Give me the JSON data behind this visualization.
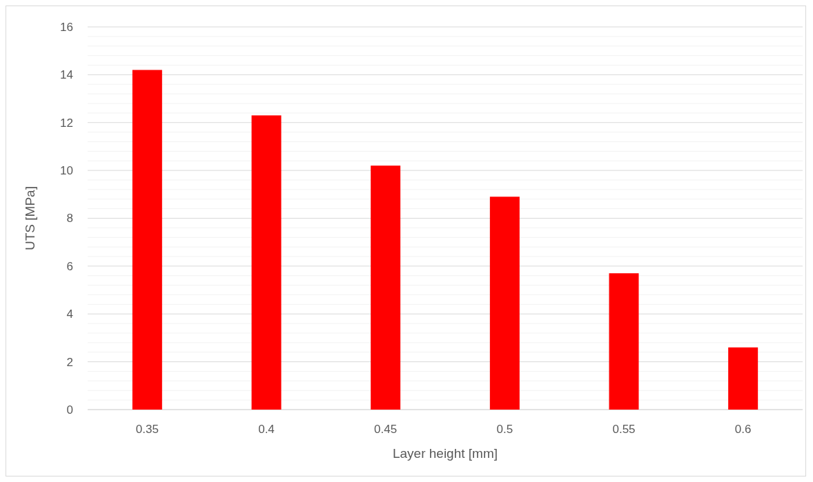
{
  "chart_data": {
    "type": "bar",
    "xlabel": "Layer height [mm]",
    "ylabel": "UTS [MPa]",
    "categories": [
      "0.35",
      "0.4",
      "0.45",
      "0.5",
      "0.55",
      "0.6"
    ],
    "values": [
      14.2,
      12.3,
      10.2,
      8.9,
      5.7,
      2.6
    ],
    "color": "#ff0000",
    "ylim": [
      0,
      16
    ],
    "yticks": [
      0,
      {
        "value": 0.4,
        "label": null
      },
      {
        "value": 0.8,
        "label": null
      },
      {
        "value": 1.2,
        "label": null
      },
      {
        "value": 1.6,
        "label": null
      },
      2,
      {
        "value": 2.4,
        "label": null
      },
      {
        "value": 2.8,
        "label": null
      },
      {
        "value": 3.2,
        "label": null
      },
      {
        "value": 3.6,
        "label": null
      },
      4,
      {
        "value": 4.4,
        "label": null
      },
      {
        "value": 4.8,
        "label": null
      },
      {
        "value": 5.2,
        "label": null
      },
      {
        "value": 5.6,
        "label": null
      },
      6,
      {
        "value": 6.4,
        "label": null
      },
      {
        "value": 6.8,
        "label": null
      },
      {
        "value": 7.2,
        "label": null
      },
      {
        "value": 7.6,
        "label": null
      },
      8,
      {
        "value": 8.4,
        "label": null
      },
      {
        "value": 8.8,
        "label": null
      },
      {
        "value": 9.2,
        "label": null
      },
      {
        "value": 9.6,
        "label": null
      },
      10,
      {
        "value": 10.4,
        "label": null
      },
      {
        "value": 10.8,
        "label": null
      },
      {
        "value": 11.2,
        "label": null
      },
      {
        "value": 11.6,
        "label": null
      },
      12,
      {
        "value": 12.4,
        "label": null
      },
      {
        "value": 12.8,
        "label": null
      },
      {
        "value": 13.2,
        "label": null
      },
      {
        "value": 13.6,
        "label": null
      },
      14,
      {
        "value": 14.4,
        "label": null
      },
      {
        "value": 14.8,
        "label": null
      },
      {
        "value": 15.2,
        "label": null
      },
      {
        "value": 15.6,
        "label": null
      },
      16
    ],
    "grid": "y"
  }
}
